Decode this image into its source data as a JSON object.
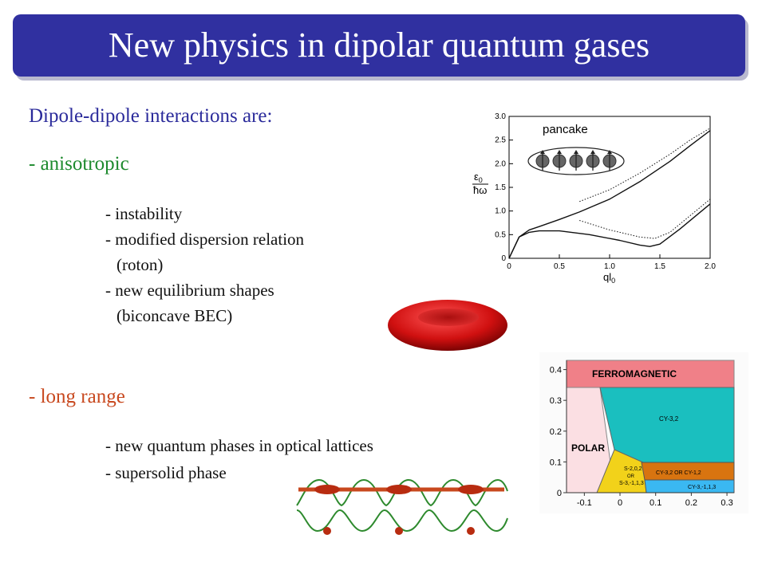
{
  "title": "New physics in dipolar quantum gases",
  "heading": "Dipole-dipole interactions are:",
  "anisotropic": {
    "label": "- anisotropic",
    "items": [
      "- instability",
      "- modified dispersion relation",
      "(roton)",
      "- new equilibrium shapes",
      "(biconcave BEC)"
    ]
  },
  "long_range": {
    "label": "- long range",
    "items": [
      "- new quantum phases in optical lattices",
      "- supersolid phase"
    ]
  },
  "colors": {
    "title_bg": "#3030a0",
    "heading": "#2b2b9b",
    "anisotropic": "#1d8a2d",
    "long_range": "#c8481e"
  },
  "chart_data": [
    {
      "type": "line",
      "title": "",
      "inset_label": "pancake",
      "xlabel": "ql",
      "xlabel_sub": "0",
      "ylabel_num": "ε",
      "ylabel_num_sub": "0",
      "ylabel_den": "ħω",
      "xlim": [
        0,
        2.0
      ],
      "ylim": [
        0,
        3.0
      ],
      "x_ticks": [
        "0",
        "0.5",
        "1.0",
        "1.5",
        "2.0"
      ],
      "y_ticks": [
        "0",
        "0.5",
        "1.0",
        "1.5",
        "2.0",
        "2.5",
        "3.0"
      ],
      "series": [
        {
          "style": "solid",
          "x": [
            0,
            0.1,
            0.2,
            0.3,
            0.5,
            0.7,
            1.0,
            1.3,
            1.6,
            1.8,
            2.0
          ],
          "y": [
            0,
            0.45,
            0.6,
            0.67,
            0.82,
            0.98,
            1.25,
            1.62,
            2.05,
            2.38,
            2.7
          ]
        },
        {
          "style": "solid",
          "x": [
            0,
            0.1,
            0.2,
            0.3,
            0.5,
            0.8,
            1.1,
            1.3,
            1.4,
            1.5,
            1.7,
            2.0
          ],
          "y": [
            0,
            0.45,
            0.55,
            0.58,
            0.58,
            0.5,
            0.38,
            0.28,
            0.25,
            0.3,
            0.62,
            1.15
          ]
        },
        {
          "style": "dotted",
          "x": [
            0.7,
            1.0,
            1.3,
            1.6,
            1.8,
            2.0
          ],
          "y": [
            1.2,
            1.45,
            1.8,
            2.2,
            2.5,
            2.75
          ]
        },
        {
          "style": "dotted",
          "x": [
            0.7,
            1.0,
            1.3,
            1.45,
            1.6,
            1.8,
            2.0
          ],
          "y": [
            0.8,
            0.6,
            0.45,
            0.42,
            0.55,
            0.9,
            1.25
          ]
        }
      ]
    },
    {
      "type": "area",
      "title": "",
      "xlim": [
        -0.15,
        0.32
      ],
      "ylim": [
        0,
        0.43
      ],
      "x_ticks": [
        "-0.1",
        "0",
        "0.1",
        "0.2",
        "0.3"
      ],
      "y_ticks": [
        "0",
        "0.1",
        "0.2",
        "0.3",
        "0.4"
      ],
      "regions": [
        {
          "name": "FERROMAGNETIC",
          "color": "#f08088"
        },
        {
          "name": "POLAR",
          "color": "#fbdfe3"
        },
        {
          "name": "CY-3,2",
          "color": "#1abfbf"
        },
        {
          "name": "S-2,0,2",
          "sub2": "OR",
          "sub3": "S-3,-1,1,3",
          "color": "#f2d21a"
        },
        {
          "name": "CY-3,2 OR CY-1,2",
          "color": "#d87410"
        },
        {
          "name": "CY-3,-1,1,3",
          "color": "#3ab8f2"
        }
      ]
    }
  ]
}
